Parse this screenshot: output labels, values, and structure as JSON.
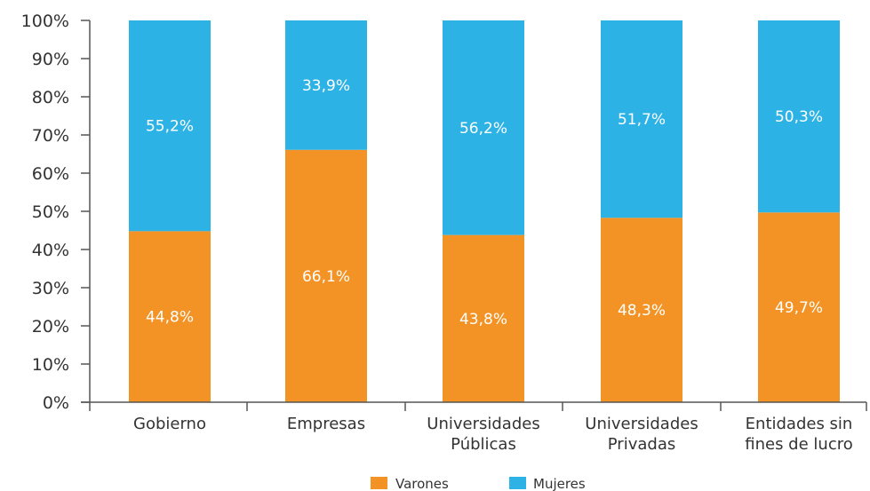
{
  "chart_data": {
    "type": "bar",
    "stacked": true,
    "percent_stacked": true,
    "categories": [
      [
        "Gobierno"
      ],
      [
        "Empresas"
      ],
      [
        "Universidades",
        "Públicas"
      ],
      [
        "Universidades",
        "Privadas"
      ],
      [
        "Entidades sin",
        "fines de lucro"
      ]
    ],
    "series": [
      {
        "name": "Varones",
        "color": "#F39325",
        "values": [
          44.8,
          66.1,
          43.8,
          48.3,
          49.7
        ],
        "labels": [
          "44,8%",
          "66,1%",
          "43,8%",
          "48,3%",
          "49,7%"
        ]
      },
      {
        "name": "Mujeres",
        "color": "#2DB2E6",
        "values": [
          55.2,
          33.9,
          56.2,
          51.7,
          50.3
        ],
        "labels": [
          "55,2%",
          "33,9%",
          "56,2%",
          "51,7%",
          "50,3%"
        ]
      }
    ],
    "ylim": [
      0,
      100
    ],
    "yticks": [
      "0%",
      "10%",
      "20%",
      "30%",
      "40%",
      "50%",
      "60%",
      "70%",
      "80%",
      "90%",
      "100%"
    ],
    "grid": false,
    "legend_position": "bottom-center"
  }
}
